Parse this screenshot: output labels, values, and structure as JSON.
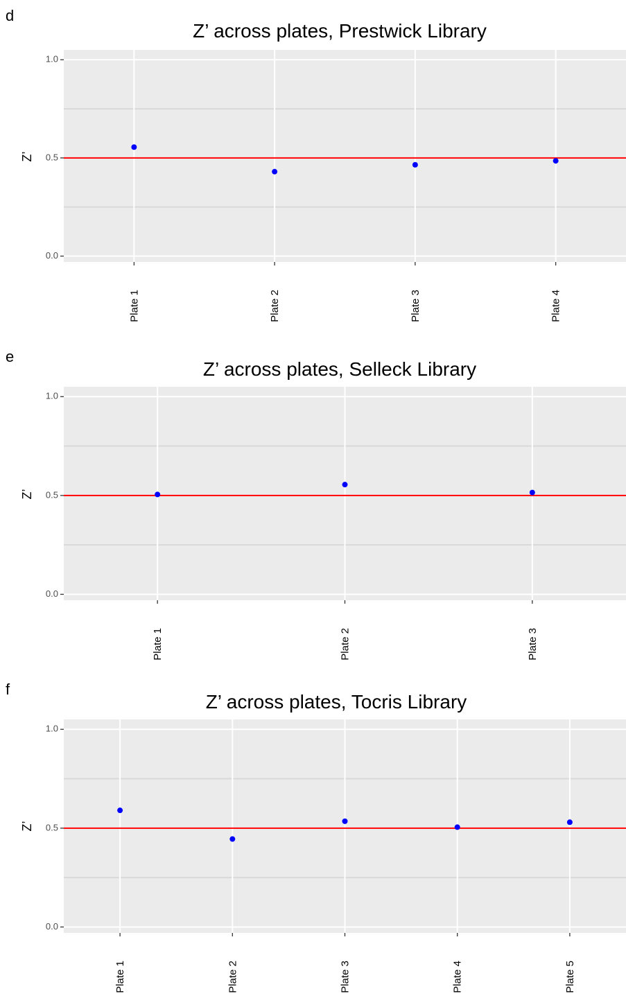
{
  "chart_data": [
    {
      "type": "scatter",
      "panel_label": "d",
      "title": "Z’ across plates, Prestwick Library",
      "xlabel": "",
      "ylabel": "Z’",
      "categories": [
        "Plate 1",
        "Plate 2",
        "Plate 3",
        "Plate 4"
      ],
      "values": [
        0.555,
        0.43,
        0.465,
        0.485
      ],
      "ylim": [
        -0.03,
        1.05
      ],
      "yticks": [
        0.0,
        0.5,
        1.0
      ],
      "ytick_labels": [
        "0.0",
        "0.5",
        "1.0"
      ],
      "reference_line": {
        "y": 0.5,
        "color": "#ff0000"
      },
      "grid": true,
      "point_color": "#0000ff",
      "panel_color": "#ebebeb",
      "grid_color": "#ffffff",
      "minor_grid_color": "#d9d9d9"
    },
    {
      "type": "scatter",
      "panel_label": "e",
      "title": "Z’ across plates, Selleck Library",
      "xlabel": "",
      "ylabel": "Z’",
      "categories": [
        "Plate 1",
        "Plate 2",
        "Plate 3"
      ],
      "values": [
        0.505,
        0.555,
        0.515
      ],
      "ylim": [
        -0.03,
        1.05
      ],
      "yticks": [
        0.0,
        0.5,
        1.0
      ],
      "ytick_labels": [
        "0.0",
        "0.5",
        "1.0"
      ],
      "reference_line": {
        "y": 0.5,
        "color": "#ff0000"
      },
      "grid": true,
      "point_color": "#0000ff",
      "panel_color": "#ebebeb",
      "grid_color": "#ffffff",
      "minor_grid_color": "#d9d9d9"
    },
    {
      "type": "scatter",
      "panel_label": "f",
      "title": "Z’ across plates, Tocris Library",
      "xlabel": "",
      "ylabel": "Z’",
      "categories": [
        "Plate 1",
        "Plate 2",
        "Plate 3",
        "Plate 4",
        "Plate 5"
      ],
      "values": [
        0.59,
        0.445,
        0.535,
        0.505,
        0.53
      ],
      "ylim": [
        -0.03,
        1.05
      ],
      "yticks": [
        0.0,
        0.5,
        1.0
      ],
      "ytick_labels": [
        "0.0",
        "0.5",
        "1.0"
      ],
      "reference_line": {
        "y": 0.5,
        "color": "#ff0000"
      },
      "grid": true,
      "point_color": "#0000ff",
      "panel_color": "#ebebeb",
      "grid_color": "#ffffff",
      "minor_grid_color": "#d9d9d9"
    }
  ]
}
